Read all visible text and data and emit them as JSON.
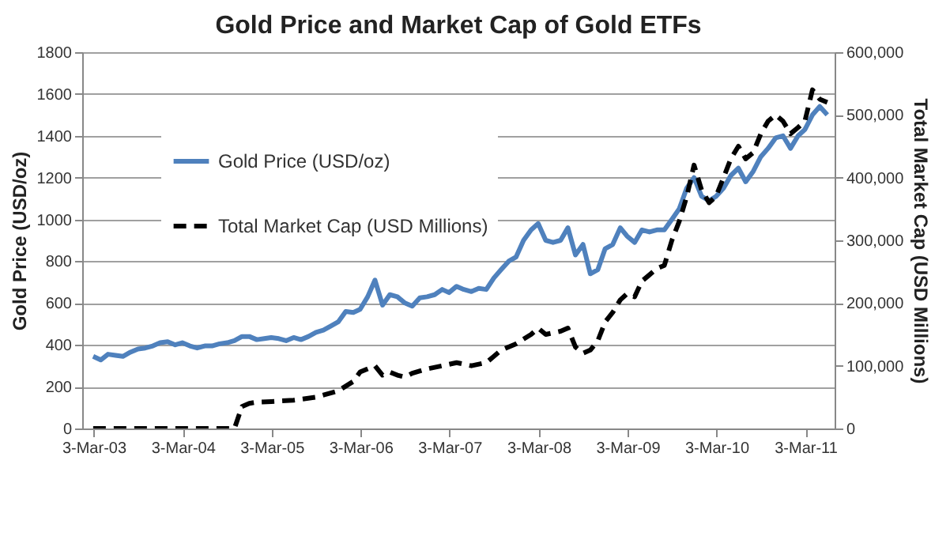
{
  "chart_data": {
    "type": "line",
    "title": "Gold Price and Market Cap of Gold ETFs",
    "ylabel": "Gold Price (USD/oz)",
    "y2label": "Total Market Cap (USD Millions)",
    "xlim": [
      "2003-01-15",
      "2011-07-01"
    ],
    "xticks": [
      {
        "value": "2003-03-03",
        "label": "3-Mar-03"
      },
      {
        "value": "2004-03-03",
        "label": "3-Mar-04"
      },
      {
        "value": "2005-03-03",
        "label": "3-Mar-05"
      },
      {
        "value": "2006-03-03",
        "label": "3-Mar-06"
      },
      {
        "value": "2007-03-03",
        "label": "3-Mar-07"
      },
      {
        "value": "2008-03-03",
        "label": "3-Mar-08"
      },
      {
        "value": "2009-03-03",
        "label": "3-Mar-09"
      },
      {
        "value": "2010-03-03",
        "label": "3-Mar-10"
      },
      {
        "value": "2011-03-03",
        "label": "3-Mar-11"
      }
    ],
    "ylim": [
      0,
      1800
    ],
    "yticks": [
      0,
      200,
      400,
      600,
      800,
      1000,
      1200,
      1400,
      1600,
      1800
    ],
    "y2lim": [
      0,
      600000
    ],
    "y2ticks": [
      {
        "value": 0,
        "label": "0"
      },
      {
        "value": 100000,
        "label": "100,000"
      },
      {
        "value": 200000,
        "label": "200,000"
      },
      {
        "value": 300000,
        "label": "300,000"
      },
      {
        "value": 400000,
        "label": "400,000"
      },
      {
        "value": 500000,
        "label": "500,000"
      },
      {
        "value": 600000,
        "label": "600,000"
      }
    ],
    "grid": "y",
    "legend": "top left",
    "series": [
      {
        "name": "Gold Price (USD/oz)",
        "color": "#4f81bd",
        "line_style": "solid",
        "x": [
          "2003-03",
          "2003-04",
          "2003-05",
          "2003-06",
          "2003-07",
          "2003-08",
          "2003-09",
          "2003-10",
          "2003-11",
          "2003-12",
          "2004-01",
          "2004-02",
          "2004-03",
          "2004-04",
          "2004-05",
          "2004-06",
          "2004-07",
          "2004-08",
          "2004-09",
          "2004-10",
          "2004-11",
          "2004-12",
          "2005-01",
          "2005-02",
          "2005-03",
          "2005-04",
          "2005-05",
          "2005-06",
          "2005-07",
          "2005-08",
          "2005-09",
          "2005-10",
          "2005-11",
          "2005-12",
          "2006-01",
          "2006-02",
          "2006-03",
          "2006-04",
          "2006-05",
          "2006-06",
          "2006-07",
          "2006-08",
          "2006-09",
          "2006-10",
          "2006-11",
          "2006-12",
          "2007-01",
          "2007-02",
          "2007-03",
          "2007-04",
          "2007-05",
          "2007-06",
          "2007-07",
          "2007-08",
          "2007-09",
          "2007-10",
          "2007-11",
          "2007-12",
          "2008-01",
          "2008-02",
          "2008-03",
          "2008-04",
          "2008-05",
          "2008-06",
          "2008-07",
          "2008-08",
          "2008-09",
          "2008-10",
          "2008-11",
          "2008-12",
          "2009-01",
          "2009-02",
          "2009-03",
          "2009-04",
          "2009-05",
          "2009-06",
          "2009-07",
          "2009-08",
          "2009-09",
          "2009-10",
          "2009-11",
          "2009-12",
          "2010-01",
          "2010-02",
          "2010-03",
          "2010-04",
          "2010-05",
          "2010-06",
          "2010-07",
          "2010-08",
          "2010-09",
          "2010-10",
          "2010-11",
          "2010-12",
          "2011-01",
          "2011-02",
          "2011-03",
          "2011-04",
          "2011-05",
          "2011-06"
        ],
        "values": [
          345,
          328,
          355,
          350,
          345,
          365,
          380,
          385,
          395,
          410,
          415,
          400,
          410,
          395,
          385,
          395,
          395,
          405,
          410,
          420,
          440,
          440,
          425,
          430,
          435,
          430,
          420,
          435,
          425,
          440,
          460,
          470,
          490,
          510,
          560,
          555,
          570,
          630,
          710,
          590,
          640,
          630,
          600,
          585,
          625,
          630,
          640,
          665,
          650,
          680,
          665,
          655,
          670,
          665,
          720,
          760,
          800,
          820,
          900,
          950,
          980,
          900,
          890,
          900,
          960,
          830,
          880,
          740,
          760,
          860,
          880,
          960,
          920,
          890,
          950,
          940,
          950,
          950,
          1000,
          1050,
          1150,
          1200,
          1110,
          1090,
          1110,
          1150,
          1210,
          1245,
          1180,
          1230,
          1300,
          1340,
          1390,
          1400,
          1340,
          1400,
          1430,
          1500,
          1540,
          1500
        ]
      },
      {
        "name": "Total Market Cap (USD Millions)",
        "color": "#000000",
        "line_style": "dashed",
        "axis": "y2",
        "x": [
          "2003-03",
          "2003-09",
          "2004-03",
          "2004-09",
          "2004-10",
          "2004-11",
          "2004-12",
          "2005-01",
          "2005-03",
          "2005-06",
          "2005-09",
          "2005-12",
          "2006-02",
          "2006-03",
          "2006-05",
          "2006-06",
          "2006-07",
          "2006-08",
          "2006-09",
          "2006-10",
          "2006-12",
          "2007-02",
          "2007-04",
          "2007-06",
          "2007-08",
          "2007-09",
          "2007-10",
          "2007-12",
          "2008-02",
          "2008-03",
          "2008-04",
          "2008-06",
          "2008-07",
          "2008-08",
          "2008-09",
          "2008-10",
          "2008-11",
          "2008-12",
          "2009-01",
          "2009-02",
          "2009-03",
          "2009-04",
          "2009-05",
          "2009-06",
          "2009-07",
          "2009-08",
          "2009-09",
          "2009-10",
          "2009-11",
          "2009-12",
          "2010-01",
          "2010-02",
          "2010-03",
          "2010-04",
          "2010-05",
          "2010-06",
          "2010-07",
          "2010-08",
          "2010-09",
          "2010-10",
          "2010-11",
          "2010-12",
          "2011-01",
          "2011-02",
          "2011-03",
          "2011-04",
          "2011-05",
          "2011-06"
        ],
        "values": [
          0,
          0,
          0,
          0,
          0,
          35000,
          40000,
          42000,
          43000,
          45000,
          50000,
          60000,
          75000,
          90000,
          100000,
          85000,
          90000,
          85000,
          82000,
          88000,
          95000,
          100000,
          105000,
          100000,
          105000,
          115000,
          125000,
          135000,
          150000,
          160000,
          150000,
          155000,
          160000,
          130000,
          120000,
          125000,
          140000,
          170000,
          185000,
          205000,
          215000,
          210000,
          235000,
          245000,
          255000,
          260000,
          300000,
          330000,
          370000,
          420000,
          380000,
          360000,
          370000,
          400000,
          430000,
          450000,
          430000,
          440000,
          470000,
          490000,
          500000,
          490000,
          470000,
          480000,
          490000,
          540000,
          525000,
          520000
        ]
      }
    ]
  }
}
